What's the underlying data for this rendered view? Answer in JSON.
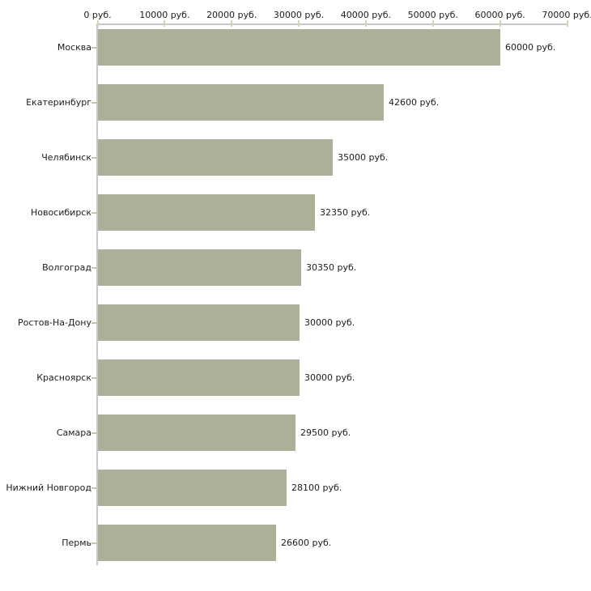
{
  "chart_data": {
    "type": "bar",
    "orientation": "horizontal",
    "title": "",
    "unit": "руб.",
    "categories": [
      "Москва",
      "Екатеринбург",
      "Челябинск",
      "Новосибирск",
      "Волгоград",
      "Ростов-На-Дону",
      "Красноярск",
      "Самара",
      "Нижний Новгород",
      "Пермь"
    ],
    "values": [
      60000,
      42600,
      35000,
      32350,
      30350,
      30000,
      30000,
      29500,
      28100,
      26600
    ],
    "bar_value_labels": [
      "60000 руб.",
      "42600 руб.",
      "35000 руб.",
      "32350 руб.",
      "30350 руб.",
      "30000 руб.",
      "30000 руб.",
      "29500 руб.",
      "28100 руб.",
      "26600 руб."
    ],
    "x_axis": {
      "position": "top",
      "min": 0,
      "max": 70000,
      "ticks": [
        0,
        10000,
        20000,
        30000,
        40000,
        50000,
        60000,
        70000
      ],
      "tick_labels": [
        "0 руб.",
        "10000 руб.",
        "20000 руб.",
        "30000 руб.",
        "40000 руб.",
        "50000 руб.",
        "60000 руб.",
        "70000 руб."
      ]
    },
    "grid": false,
    "legend": false,
    "colors": {
      "bar": "#abb198",
      "axis_line": "#c9c9c9",
      "x_tick_mark": "#d8d5ae",
      "y_tick_mark": "#c6c4ac",
      "text": "#1c1c1c",
      "background": "#ffffff"
    }
  }
}
